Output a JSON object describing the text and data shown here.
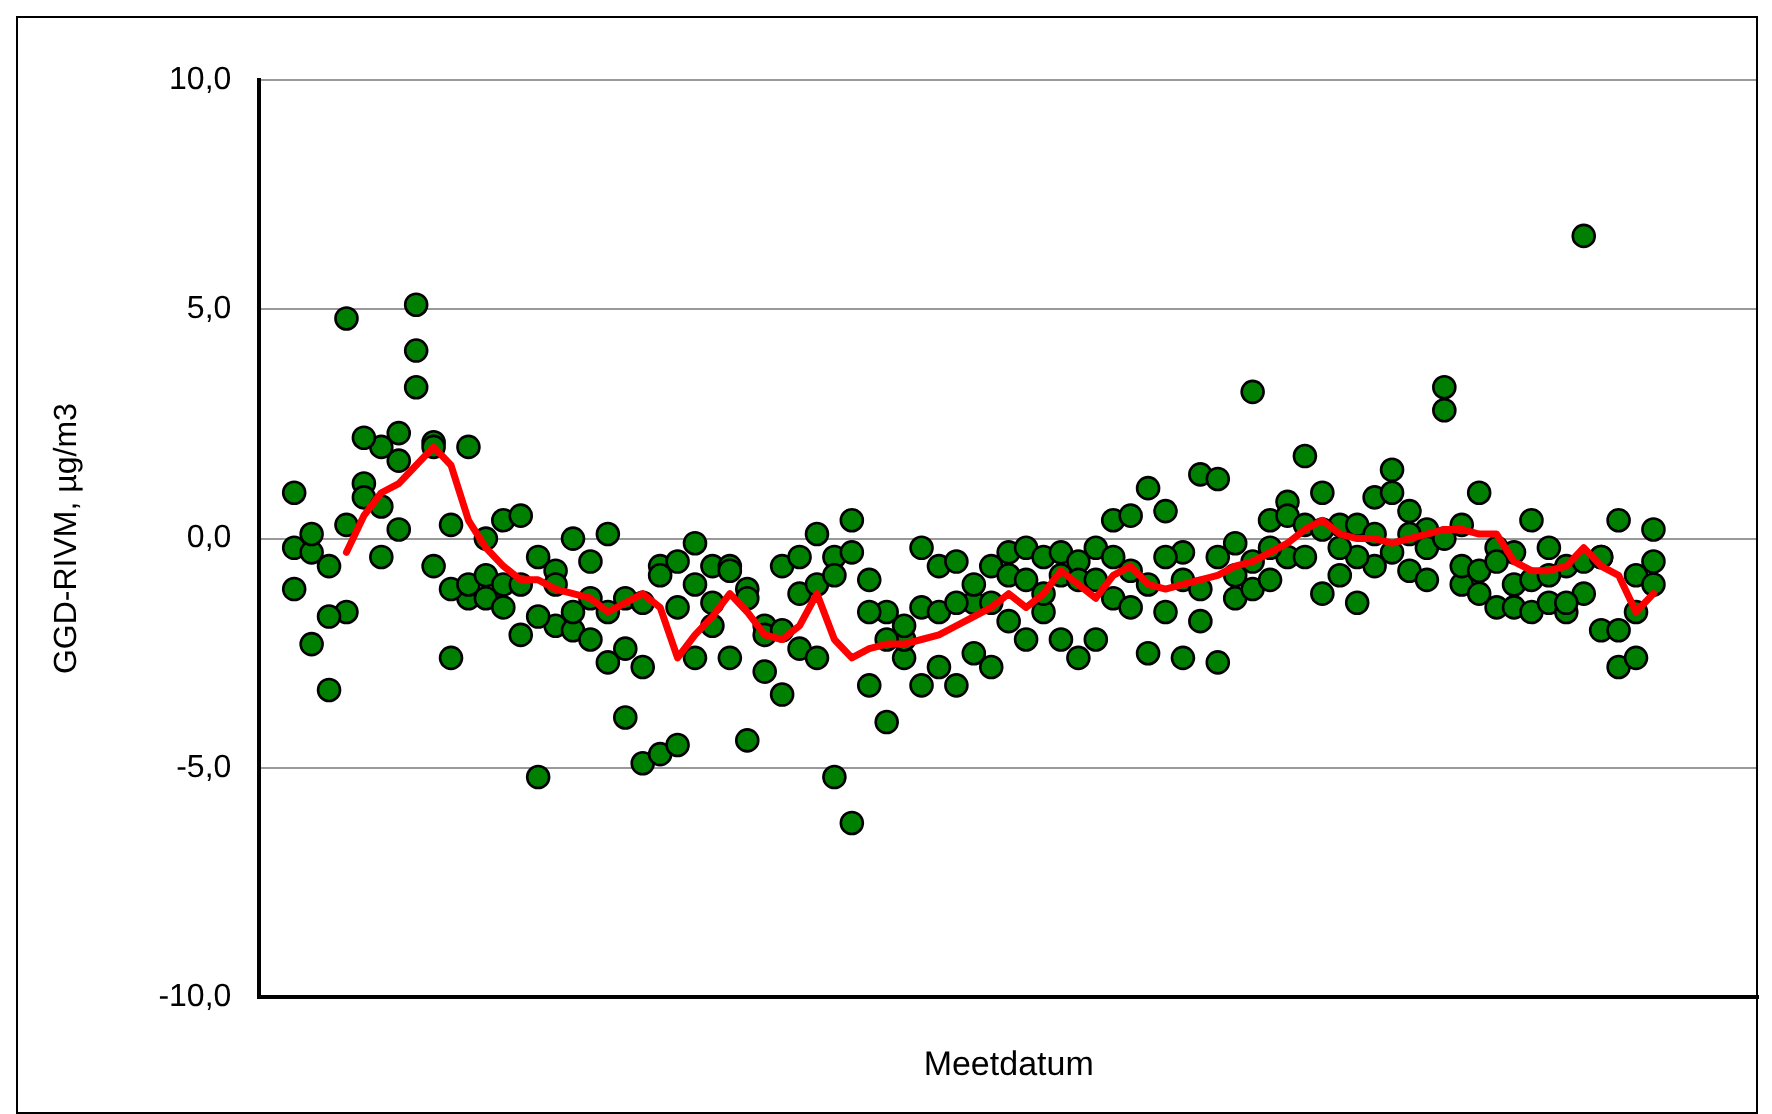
{
  "chart_data": {
    "type": "scatter",
    "xlabel": "Meetdatum",
    "ylabel": "GGD-RIVM, µg/m3",
    "categories": [
      null,
      null,
      null,
      null,
      null,
      null,
      null,
      null,
      null,
      null,
      null,
      null,
      null,
      null,
      null,
      null,
      null,
      null,
      null,
      null,
      null,
      null,
      null,
      null,
      null,
      null,
      null,
      null,
      null,
      null,
      null,
      null,
      null,
      null,
      null,
      null,
      null,
      null,
      null,
      null,
      null,
      null,
      null,
      null,
      null,
      null,
      null,
      null,
      null,
      null,
      null,
      null,
      null,
      null,
      null,
      null,
      null,
      null,
      null,
      null,
      null,
      null,
      null,
      null,
      null,
      null,
      null,
      null,
      null,
      null,
      null,
      null,
      null,
      null,
      null,
      null,
      null,
      null,
      null,
      null,
      null,
      null,
      null,
      null,
      null,
      null,
      null
    ],
    "ylim": [
      -10,
      10
    ],
    "yticks": [
      {
        "value": -10,
        "label": "-10,0"
      },
      {
        "value": -5,
        "label": "-5,0"
      },
      {
        "value": 0,
        "label": "0,0"
      },
      {
        "value": 5,
        "label": "5,0"
      },
      {
        "value": 10,
        "label": "10,0"
      }
    ],
    "tick_labels": "y",
    "grid": "y",
    "legend": false,
    "marker": "circle",
    "series": [
      {
        "color": "#008000",
        "values": [
          null,
          null,
          1.0,
          0.1,
          -0.6,
          0.3,
          2.2,
          0.7,
          1.7,
          4.1,
          2.0,
          0.3,
          -1.0,
          -0.8,
          -1.0,
          -1.0,
          -1.7,
          -1.0,
          -1.6,
          -2.2,
          -1.6,
          -2.4,
          -2.8,
          -0.8,
          -1.5,
          -1.0,
          -1.4,
          -0.7,
          -1.3,
          -2.1,
          -2.0,
          -1.2,
          -1.0,
          -0.8,
          -0.3,
          -1.6,
          -2.2,
          -1.9,
          -1.5,
          -1.6,
          -1.4,
          -1.0,
          -1.4,
          -0.8,
          -0.9,
          -1.2,
          -0.8,
          -0.9,
          -0.9,
          -0.4,
          -0.7,
          -1.0,
          -0.4,
          -0.9,
          -1.1,
          -0.4,
          -0.8,
          -0.5,
          -0.2,
          0.5,
          0.3,
          0.2,
          -0.2,
          0.3,
          0.1,
          1.0,
          0.1,
          -0.2,
          0.0,
          -0.6,
          -0.7,
          -0.5,
          -1.0,
          -0.9,
          -0.8,
          -1.4,
          -0.5,
          -0.4,
          -2.0,
          -1.6,
          -1.0,
          null,
          null,
          null,
          null,
          null,
          null
        ]
      },
      {
        "color": "#008000",
        "values": [
          null,
          null,
          -0.2,
          -0.3,
          -1.7,
          4.8,
          0.9,
          2.0,
          2.3,
          5.1,
          2.1,
          -1.1,
          2.0,
          0.0,
          0.4,
          0.5,
          -0.4,
          -0.7,
          0.0,
          -0.5,
          0.1,
          -1.3,
          -1.4,
          -0.6,
          -0.5,
          -0.1,
          -0.6,
          -0.6,
          -1.1,
          -1.9,
          -0.6,
          -0.4,
          0.1,
          -0.4,
          0.4,
          -0.9,
          -1.6,
          -2.2,
          -0.2,
          -0.6,
          -0.5,
          -1.4,
          -0.6,
          -0.3,
          -0.2,
          -0.4,
          -0.3,
          -0.5,
          -0.2,
          0.4,
          0.5,
          1.1,
          0.6,
          -0.3,
          1.4,
          1.3,
          -0.1,
          3.2,
          0.4,
          0.8,
          1.8,
          1.0,
          0.3,
          -0.4,
          0.9,
          1.5,
          0.6,
          0.2,
          2.8,
          0.3,
          1.0,
          -0.2,
          -0.3,
          0.4,
          -0.2,
          -0.6,
          6.6,
          -0.4,
          0.4,
          -0.8,
          0.2,
          null,
          null,
          null,
          null,
          null,
          null
        ]
      },
      {
        "color": "#008000",
        "values": [
          null,
          null,
          -1.1,
          -2.3,
          -3.3,
          -1.6,
          1.2,
          -0.4,
          0.2,
          3.3,
          -0.6,
          -2.6,
          -1.3,
          -1.3,
          -1.5,
          -2.1,
          -5.2,
          -1.9,
          -2.0,
          -1.3,
          -2.7,
          -3.9,
          -4.9,
          -4.7,
          -4.5,
          -2.6,
          -1.9,
          -2.6,
          -4.4,
          -2.9,
          -3.4,
          -2.4,
          -2.6,
          -5.2,
          -6.2,
          -3.2,
          -4.0,
          -2.6,
          -3.2,
          -2.8,
          -3.2,
          -2.5,
          -2.8,
          -1.8,
          -2.2,
          -1.6,
          -2.2,
          -2.6,
          -2.2,
          -1.3,
          -1.5,
          -2.5,
          -1.6,
          -2.6,
          -1.8,
          -2.7,
          -1.3,
          -1.1,
          -0.9,
          -0.4,
          -0.4,
          -1.2,
          -0.8,
          -1.4,
          -0.6,
          -0.3,
          -0.7,
          -0.9,
          3.3,
          -1.0,
          -1.2,
          -1.5,
          -1.5,
          -1.6,
          -1.4,
          -1.6,
          -1.2,
          -2.0,
          -2.8,
          -2.6,
          -0.5,
          null,
          null,
          null,
          null,
          null,
          null
        ]
      },
      {
        "type": "line",
        "color": "#ff0000",
        "marker": "none",
        "line_style": "solid",
        "values": [
          null,
          null,
          null,
          null,
          null,
          -0.3,
          0.5,
          1.0,
          1.2,
          1.6,
          2.0,
          1.6,
          0.4,
          -0.2,
          -0.6,
          -0.9,
          -0.9,
          -1.1,
          -1.2,
          -1.3,
          -1.6,
          -1.4,
          -1.2,
          -1.5,
          -2.6,
          -2.1,
          -1.7,
          -1.2,
          -1.6,
          -2.1,
          -2.2,
          -1.9,
          -1.2,
          -2.2,
          -2.6,
          -2.4,
          -2.3,
          -2.3,
          -2.2,
          -2.1,
          -1.9,
          -1.7,
          -1.5,
          -1.2,
          -1.5,
          -1.2,
          -0.7,
          -1.0,
          -1.3,
          -0.8,
          -0.6,
          -1.0,
          -1.1,
          -1.0,
          -0.9,
          -0.8,
          -0.6,
          -0.5,
          -0.3,
          -0.1,
          0.2,
          0.4,
          0.1,
          0.0,
          0.0,
          -0.1,
          0.0,
          0.1,
          0.2,
          0.2,
          0.1,
          0.1,
          -0.5,
          -0.7,
          -0.7,
          -0.6,
          -0.2,
          -0.6,
          -0.8,
          -1.6,
          -1.2,
          null,
          null,
          null,
          null,
          null,
          null
        ]
      }
    ]
  }
}
